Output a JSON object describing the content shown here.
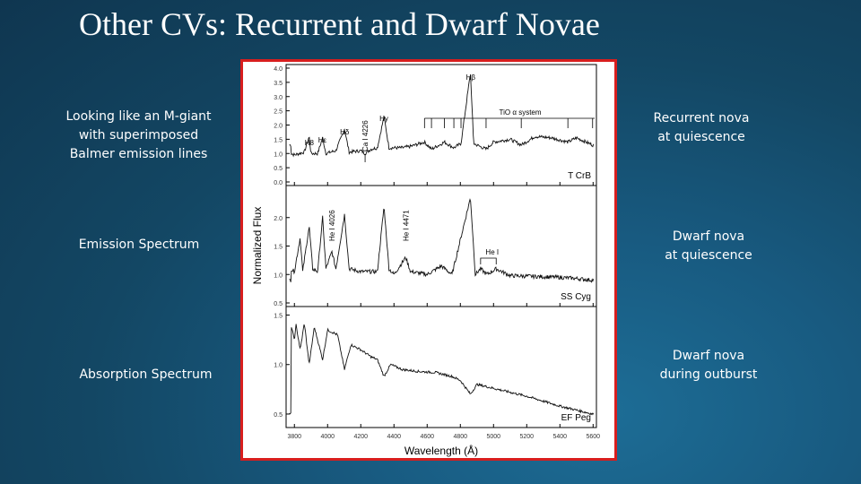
{
  "slide": {
    "title": "Other CVs: Recurrent and Dwarf Novae",
    "left_labels": [
      "Looking like an M-giant\nwith superimposed\nBalmer  emission lines",
      "Emission Spectrum",
      "Absorption Spectrum"
    ],
    "right_labels": [
      "Recurrent nova\nat quiescence",
      "Dwarf nova\nat quiescence",
      "Dwarf nova\nduring outburst"
    ]
  },
  "chart_data": {
    "type": "line",
    "xlabel": "Wavelength (Å)",
    "ylabel": "Normalized Flux",
    "xlim": [
      3750,
      5620
    ],
    "x_ticks": [
      "3800",
      "4000",
      "4200",
      "4400",
      "4600",
      "4800",
      "5000",
      "5200",
      "5400",
      "5600"
    ],
    "panels": [
      {
        "name": "T CrB",
        "ylim": [
          0.0,
          4.0
        ],
        "y_ticks": [
          "0.0",
          "0.5",
          "1.0",
          "1.5",
          "2.0",
          "2.5",
          "3.0",
          "3.5",
          "4.0"
        ],
        "annotations": [
          {
            "text": "H8",
            "x": 3889
          },
          {
            "text": "Hε",
            "x": 3970
          },
          {
            "text": "Hδ",
            "x": 4102
          },
          {
            "text": "Ca I 4226",
            "x": 4226
          },
          {
            "text": "Hγ",
            "x": 4340
          },
          {
            "text": "Hβ",
            "x": 4861
          },
          {
            "text": "TiO α system",
            "x": 5250
          }
        ],
        "tio_bands": [
          4584,
          4626,
          4704,
          4761,
          4804,
          4955,
          5167,
          5448,
          5597
        ],
        "points": [
          [
            3780,
            1.0
          ],
          [
            3800,
            0.95
          ],
          [
            3830,
            1.0
          ],
          [
            3860,
            1.05
          ],
          [
            3889,
            1.6
          ],
          [
            3900,
            1.0
          ],
          [
            3940,
            1.0
          ],
          [
            3970,
            1.55
          ],
          [
            3990,
            1.0
          ],
          [
            4050,
            1.1
          ],
          [
            4102,
            1.85
          ],
          [
            4130,
            1.05
          ],
          [
            4200,
            1.1
          ],
          [
            4226,
            1.0
          ],
          [
            4260,
            1.15
          ],
          [
            4300,
            1.2
          ],
          [
            4340,
            2.3
          ],
          [
            4370,
            1.2
          ],
          [
            4450,
            1.2
          ],
          [
            4500,
            1.25
          ],
          [
            4584,
            1.4
          ],
          [
            4626,
            1.15
          ],
          [
            4704,
            1.4
          ],
          [
            4761,
            1.2
          ],
          [
            4804,
            1.35
          ],
          [
            4861,
            3.85
          ],
          [
            4880,
            1.35
          ],
          [
            4955,
            1.15
          ],
          [
            5000,
            1.4
          ],
          [
            5100,
            1.5
          ],
          [
            5167,
            1.3
          ],
          [
            5250,
            1.6
          ],
          [
            5350,
            1.55
          ],
          [
            5448,
            1.4
          ],
          [
            5500,
            1.55
          ],
          [
            5597,
            1.3
          ]
        ]
      },
      {
        "name": "SS Cyg",
        "ylim": [
          0.5,
          2.5
        ],
        "y_ticks": [
          "0.5",
          "1.0",
          "1.5",
          "2.0"
        ],
        "annotations": [
          {
            "text": "He I 4026",
            "x": 4026
          },
          {
            "text": "He I 4471",
            "x": 4471
          },
          {
            "text": "He I",
            "x": 4990
          }
        ],
        "points": [
          [
            3780,
            1.1
          ],
          [
            3800,
            1.05
          ],
          [
            3835,
            1.65
          ],
          [
            3850,
            1.05
          ],
          [
            3889,
            1.85
          ],
          [
            3910,
            1.1
          ],
          [
            3940,
            1.05
          ],
          [
            3970,
            2.0
          ],
          [
            3990,
            1.1
          ],
          [
            4026,
            1.4
          ],
          [
            4050,
            1.1
          ],
          [
            4102,
            2.05
          ],
          [
            4130,
            1.1
          ],
          [
            4200,
            1.05
          ],
          [
            4300,
            1.05
          ],
          [
            4340,
            2.2
          ],
          [
            4370,
            1.1
          ],
          [
            4400,
            1.0
          ],
          [
            4471,
            1.3
          ],
          [
            4500,
            1.05
          ],
          [
            4600,
            1.0
          ],
          [
            4686,
            1.15
          ],
          [
            4750,
            1.0
          ],
          [
            4861,
            2.35
          ],
          [
            4890,
            1.0
          ],
          [
            4922,
            1.1
          ],
          [
            4960,
            1.0
          ],
          [
            5016,
            1.1
          ],
          [
            5100,
            0.98
          ],
          [
            5200,
            0.97
          ],
          [
            5300,
            0.96
          ],
          [
            5400,
            0.95
          ],
          [
            5500,
            0.93
          ],
          [
            5597,
            0.9
          ]
        ]
      },
      {
        "name": "EF Peg",
        "ylim": [
          0.4,
          1.55
        ],
        "y_ticks": [
          "0.5",
          "1.0",
          "1.5"
        ],
        "points": [
          [
            3780,
            1.4
          ],
          [
            3800,
            1.25
          ],
          [
            3810,
            1.4
          ],
          [
            3835,
            1.15
          ],
          [
            3860,
            1.42
          ],
          [
            3889,
            1.0
          ],
          [
            3920,
            1.38
          ],
          [
            3970,
            1.05
          ],
          [
            4000,
            1.35
          ],
          [
            4060,
            1.3
          ],
          [
            4102,
            0.95
          ],
          [
            4140,
            1.2
          ],
          [
            4200,
            1.15
          ],
          [
            4260,
            1.08
          ],
          [
            4300,
            1.05
          ],
          [
            4340,
            0.88
          ],
          [
            4380,
            1.0
          ],
          [
            4450,
            0.95
          ],
          [
            4550,
            0.93
          ],
          [
            4650,
            0.92
          ],
          [
            4750,
            0.88
          ],
          [
            4800,
            0.84
          ],
          [
            4861,
            0.7
          ],
          [
            4900,
            0.8
          ],
          [
            5000,
            0.76
          ],
          [
            5100,
            0.72
          ],
          [
            5200,
            0.68
          ],
          [
            5300,
            0.63
          ],
          [
            5400,
            0.58
          ],
          [
            5500,
            0.54
          ],
          [
            5597,
            0.5
          ]
        ]
      }
    ]
  }
}
